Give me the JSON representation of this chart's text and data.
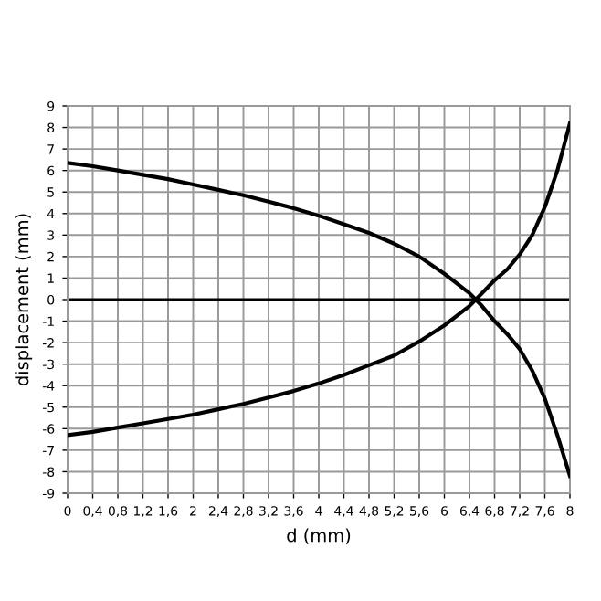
{
  "chart_data": {
    "type": "line",
    "xlabel": "d (mm)",
    "ylabel": "displacement (mm)",
    "series": [
      {
        "color": "#000000",
        "x": [
          0,
          0.4,
          0.8,
          1.2,
          1.6,
          2,
          2.4,
          2.8,
          3.2,
          3.6,
          4,
          4.4,
          4.8,
          5.2,
          5.6,
          6,
          6.2,
          6.4,
          6.5,
          6.6,
          6.8,
          7,
          7.2,
          7.4,
          7.6,
          7.8,
          8
        ],
        "values": [
          6.35,
          6.2,
          6.0,
          5.8,
          5.6,
          5.35,
          5.1,
          4.85,
          4.55,
          4.25,
          3.9,
          3.5,
          3.1,
          2.6,
          2.0,
          1.2,
          0.75,
          0.3,
          0,
          -0.3,
          -1.0,
          -1.6,
          -2.3,
          -3.3,
          -4.6,
          -6.3,
          -8.2
        ]
      },
      {
        "color": "#000000",
        "x": [
          0,
          0.4,
          0.8,
          1.2,
          1.6,
          2,
          2.4,
          2.8,
          3.2,
          3.6,
          4,
          4.4,
          4.8,
          5.2,
          5.6,
          6,
          6.2,
          6.4,
          6.5,
          6.6,
          6.8,
          7,
          7.2,
          7.4,
          7.6,
          7.8,
          8
        ],
        "values": [
          -6.3,
          -6.15,
          -5.95,
          -5.75,
          -5.55,
          -5.35,
          -5.1,
          -4.85,
          -4.55,
          -4.25,
          -3.9,
          -3.5,
          -3.05,
          -2.6,
          -1.95,
          -1.2,
          -0.75,
          -0.3,
          0,
          0.3,
          0.9,
          1.4,
          2.1,
          3.0,
          4.3,
          6.0,
          8.2
        ]
      }
    ],
    "xlim": [
      0,
      8
    ],
    "ylim": [
      -9,
      9
    ],
    "xticks": [
      0,
      {
        "value": 0.4,
        "label": "0,4"
      },
      {
        "value": 0.8,
        "label": "0,8"
      },
      {
        "value": 1.2,
        "label": "1,2"
      },
      {
        "value": 1.6,
        "label": "1,6"
      },
      2,
      {
        "value": 2.4,
        "label": "2,4"
      },
      {
        "value": 2.8,
        "label": "2,8"
      },
      {
        "value": 3.2,
        "label": "3,2"
      },
      {
        "value": 3.6,
        "label": "3,6"
      },
      4,
      {
        "value": 4.4,
        "label": "4,4"
      },
      {
        "value": 4.8,
        "label": "4,8"
      },
      {
        "value": 5.2,
        "label": "5,2"
      },
      {
        "value": 5.6,
        "label": "5,6"
      },
      6,
      {
        "value": 6.4,
        "label": "6,4"
      },
      {
        "value": 6.8,
        "label": "6,8"
      },
      {
        "value": 7.2,
        "label": "7,2"
      },
      {
        "value": 7.6,
        "label": "7,6"
      },
      8
    ],
    "yticks": [
      -9,
      -8,
      -7,
      -6,
      -5,
      -4,
      -3,
      -2,
      -1,
      0,
      1,
      2,
      3,
      4,
      5,
      6,
      7,
      8,
      9
    ],
    "ref_lines": [
      {
        "axis": "y",
        "value": 0,
        "color": "#000000"
      }
    ],
    "grid": true,
    "line_style": "solid",
    "marker": "none"
  }
}
